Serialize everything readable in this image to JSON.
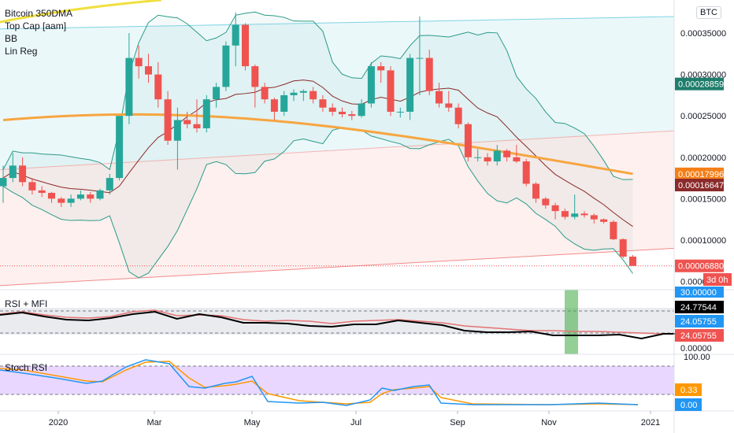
{
  "overlays": {
    "price": [
      "Bitcoin 350DMA",
      "Top Cap [aam]",
      "BB",
      "Lin Reg"
    ],
    "rsi_title": "RSI + MFI",
    "stoch_title": "Stoch RSI"
  },
  "symbol_badge": "BTC",
  "countdown": "3d 0h",
  "colors": {
    "up": "#26a69a",
    "down": "#ef5350",
    "ma350": "#f7a541",
    "topcap": "#f0e040",
    "bb": "#2c9a88",
    "bb_basis": "#8b2a2a",
    "linreg_up": "#7fd3e3",
    "linreg_down": "#f28a8a",
    "rsi_line": "#000000",
    "mfi_line": "#e57373",
    "stoch_k": "#2196f3",
    "stoch_d": "#ff9800",
    "stoch_band": "#e1c9ff",
    "highlight": "#4caf50"
  },
  "chart_data": [
    {
      "type": "candlestick",
      "x_ticks": [
        "2020",
        "Mar",
        "May",
        "Jul",
        "Sep",
        "Nov",
        "2021"
      ],
      "y_ticks": [
        "0.00035000",
        "0.00030000",
        "0.00025000",
        "0.00020000",
        "0.00015000",
        "0.00010000",
        "0.00005000"
      ],
      "ylim": [
        4e-05,
        0.00039
      ],
      "price_labels": [
        {
          "text": "0.00028859",
          "value": 0.00028859,
          "color": "#1e7d6b"
        },
        {
          "text": "0.00017996",
          "value": 0.00017996,
          "color": "#f57f17"
        },
        {
          "text": "0.00016647",
          "value": 0.00016647,
          "color": "#8b2a2a"
        },
        {
          "text": "0.00006880",
          "value": 6.88e-05,
          "color": "#ef5350"
        }
      ],
      "candles": [
        [
          0.000165,
          0.00019,
          0.000145,
          0.000175
        ],
        [
          0.000175,
          0.000205,
          0.00017,
          0.00019
        ],
        [
          0.00019,
          0.0002,
          0.000165,
          0.00017
        ],
        [
          0.00017,
          0.000175,
          0.000155,
          0.00016
        ],
        [
          0.00016,
          0.000165,
          0.000152,
          0.000157
        ],
        [
          0.000157,
          0.000158,
          0.000145,
          0.00015
        ],
        [
          0.00015,
          0.000152,
          0.00014,
          0.000145
        ],
        [
          0.000145,
          0.000155,
          0.00014,
          0.00015
        ],
        [
          0.00015,
          0.00016,
          0.000148,
          0.000155
        ],
        [
          0.000155,
          0.000158,
          0.000145,
          0.00015
        ],
        [
          0.00015,
          0.000162,
          0.000148,
          0.00016
        ],
        [
          0.00016,
          0.00018,
          0.000155,
          0.000175
        ],
        [
          0.000175,
          0.00025,
          0.000172,
          0.00025
        ],
        [
          0.00025,
          0.00035,
          0.00024,
          0.00032
        ],
        [
          0.00032,
          0.000335,
          0.000295,
          0.00031
        ],
        [
          0.00031,
          0.000325,
          0.00029,
          0.0003
        ],
        [
          0.0003,
          0.000315,
          0.00026,
          0.00027
        ],
        [
          0.00027,
          0.00028,
          0.000215,
          0.00022
        ],
        [
          0.00022,
          0.00026,
          0.000185,
          0.000245
        ],
        [
          0.000245,
          0.000255,
          0.000235,
          0.00024
        ],
        [
          0.00024,
          0.00027,
          0.00023,
          0.000235
        ],
        [
          0.000235,
          0.000275,
          0.00023,
          0.00027
        ],
        [
          0.00027,
          0.00029,
          0.00026,
          0.000285
        ],
        [
          0.000285,
          0.00034,
          0.00028,
          0.000335
        ],
        [
          0.000335,
          0.000375,
          0.00031,
          0.00036
        ],
        [
          0.00036,
          0.000362,
          0.000305,
          0.00031
        ],
        [
          0.00031,
          0.000312,
          0.00026,
          0.000285
        ],
        [
          0.000285,
          0.00029,
          0.000265,
          0.00027
        ],
        [
          0.00027,
          0.000272,
          0.000245,
          0.000255
        ],
        [
          0.000255,
          0.00028,
          0.00025,
          0.000275
        ],
        [
          0.000275,
          0.000282,
          0.000268,
          0.000278
        ],
        [
          0.000278,
          0.000282,
          0.000268,
          0.00028
        ],
        [
          0.00028,
          0.000285,
          0.000265,
          0.00027
        ],
        [
          0.00027,
          0.000275,
          0.000255,
          0.00026
        ],
        [
          0.00026,
          0.000265,
          0.00025,
          0.000255
        ],
        [
          0.000255,
          0.00026,
          0.000248,
          0.000252
        ],
        [
          0.000252,
          0.000256,
          0.000245,
          0.00025
        ],
        [
          0.00025,
          0.00027,
          0.000248,
          0.000265
        ],
        [
          0.000265,
          0.000315,
          0.00026,
          0.00031
        ],
        [
          0.00031,
          0.000315,
          0.00029,
          0.000305
        ],
        [
          0.000305,
          0.00031,
          0.00025,
          0.000255
        ],
        [
          0.000255,
          0.00026,
          0.000248,
          0.000255
        ],
        [
          0.000255,
          0.000325,
          0.000245,
          0.00032
        ],
        [
          0.00032,
          0.00037,
          0.000275,
          0.00032
        ],
        [
          0.00032,
          0.00033,
          0.000275,
          0.00028
        ],
        [
          0.00028,
          0.00029,
          0.00026,
          0.000265
        ],
        [
          0.000265,
          0.00028,
          0.000255,
          0.00026
        ],
        [
          0.00026,
          0.000265,
          0.000235,
          0.00024
        ],
        [
          0.00024,
          0.000242,
          0.000195,
          0.0002
        ],
        [
          0.0002,
          0.00021,
          0.000195,
          0.0002
        ],
        [
          0.0002,
          0.000205,
          0.00019,
          0.000195
        ],
        [
          0.000195,
          0.000215,
          0.00019,
          0.000208
        ],
        [
          0.000208,
          0.00021,
          0.000195,
          0.0002
        ],
        [
          0.0002,
          0.000215,
          0.000193,
          0.000195
        ],
        [
          0.000195,
          0.000198,
          0.000165,
          0.000168
        ],
        [
          0.000168,
          0.00017,
          0.000145,
          0.00015
        ],
        [
          0.00015,
          0.000152,
          0.000138,
          0.000142
        ],
        [
          0.000142,
          0.000145,
          0.000125,
          0.000135
        ],
        [
          0.000135,
          0.000138,
          0.000125,
          0.000128
        ],
        [
          0.000128,
          0.000155,
          0.000125,
          0.000132
        ],
        [
          0.000132,
          0.000135,
          0.000127,
          0.00013
        ],
        [
          0.00013,
          0.000132,
          0.00012,
          0.000125
        ],
        [
          0.000125,
          0.000126,
          0.00012,
          0.000122
        ],
        [
          0.000122,
          0.000124,
          0.0001,
          0.000101
        ],
        [
          0.000101,
          0.000102,
          7.8e-05,
          8e-05
        ],
        [
          8e-05,
          8.2e-05,
          7e-05,
          6.88e-05
        ]
      ]
    },
    {
      "type": "line",
      "title": "RSI + MFI",
      "y_ticks": [
        "30.00000",
        "0.00000"
      ],
      "value_labels": [
        {
          "text": "24.77544",
          "color": "#000000"
        },
        {
          "text": "24.05755",
          "color": "#2196f3"
        },
        {
          "text": "24.05755",
          "color": "#ef5350"
        }
      ]
    },
    {
      "type": "line",
      "title": "Stoch RSI",
      "y_ticks": [
        "100.00"
      ],
      "value_labels": [
        {
          "text": "0.33",
          "color": "#ff9800"
        },
        {
          "text": "0.00",
          "color": "#2196f3"
        }
      ]
    }
  ]
}
